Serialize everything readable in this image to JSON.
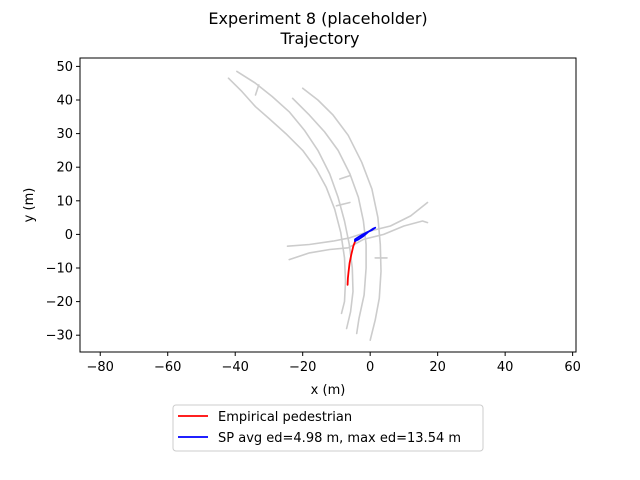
{
  "chart_data": {
    "type": "line",
    "title": "Experiment 8 (placeholder)",
    "subtitle": "Trajectory",
    "xlabel": "x (m)",
    "ylabel": "y (m)",
    "xlim": [
      -86,
      61
    ],
    "ylim": [
      -35,
      52.5
    ],
    "xticks": [
      -80,
      -60,
      -40,
      -20,
      0,
      20,
      40,
      60
    ],
    "yticks": [
      -30,
      -20,
      -10,
      0,
      10,
      20,
      30,
      40,
      50
    ],
    "grid": false,
    "legend_position": "below",
    "background_tracks": {
      "color": "#cccccc",
      "tracks": [
        [
          [
            -42,
            46.5
          ],
          [
            -38,
            42.5
          ],
          [
            -34,
            38
          ],
          [
            -30,
            34.5
          ],
          [
            -25,
            30
          ],
          [
            -20,
            25
          ],
          [
            -16,
            19.5
          ],
          [
            -13,
            14
          ],
          [
            -10.5,
            7.5
          ],
          [
            -8.7,
            0.5
          ],
          [
            -7.6,
            -7
          ],
          [
            -7.3,
            -14
          ],
          [
            -7.6,
            -20
          ],
          [
            -8.5,
            -23.5
          ]
        ],
        [
          [
            -39.5,
            48.5
          ],
          [
            -34,
            45
          ],
          [
            -29,
            41
          ],
          [
            -24,
            36.5
          ],
          [
            -19.5,
            31
          ],
          [
            -15.5,
            25
          ],
          [
            -12,
            18
          ],
          [
            -9.5,
            11
          ],
          [
            -7.6,
            4
          ],
          [
            -6.2,
            -3
          ],
          [
            -5.3,
            -10
          ],
          [
            -5.1,
            -17
          ],
          [
            -5.8,
            -23
          ],
          [
            -7,
            -28
          ]
        ],
        [
          [
            -34,
            41.5
          ],
          [
            -33,
            44.5
          ]
        ],
        [
          [
            -23,
            40.5
          ],
          [
            -18,
            35.5
          ],
          [
            -13.5,
            30.5
          ],
          [
            -9.5,
            25
          ],
          [
            -6,
            18
          ],
          [
            -3.5,
            11
          ],
          [
            -2,
            4
          ],
          [
            -1.2,
            -3
          ],
          [
            -1.2,
            -10
          ],
          [
            -1.8,
            -18
          ],
          [
            -3.3,
            -25
          ],
          [
            -4,
            -29.5
          ]
        ],
        [
          [
            -20,
            43.5
          ],
          [
            -15.5,
            40
          ],
          [
            -11,
            35.5
          ],
          [
            -6.5,
            29.5
          ],
          [
            -2.5,
            21.5
          ],
          [
            0.5,
            13.5
          ],
          [
            2.3,
            5
          ],
          [
            3,
            -3
          ],
          [
            3.2,
            -11
          ],
          [
            2.7,
            -19
          ],
          [
            1.5,
            -25.5
          ],
          [
            0,
            -31.5
          ]
        ],
        [
          [
            -6,
            17.5
          ],
          [
            -9,
            16.5
          ]
        ],
        [
          [
            -6,
            9.5
          ],
          [
            -10,
            8.5
          ]
        ],
        [
          [
            1.5,
            -7
          ],
          [
            5,
            -7
          ]
        ],
        [
          [
            -24.5,
            -3.5
          ],
          [
            -18,
            -3
          ],
          [
            -11,
            -2
          ],
          [
            -6,
            -1
          ],
          [
            0,
            1
          ],
          [
            6,
            2.5
          ],
          [
            12,
            5.5
          ],
          [
            17,
            9.5
          ]
        ],
        [
          [
            -24,
            -7.5
          ],
          [
            -18,
            -5.5
          ],
          [
            -12,
            -4.5
          ],
          [
            -6.5,
            -4
          ],
          [
            -2,
            -1.5
          ],
          [
            4,
            0
          ],
          [
            10,
            2.5
          ],
          [
            15.5,
            4
          ],
          [
            17,
            3.5
          ]
        ]
      ]
    },
    "series": [
      {
        "name": "Empirical pedestrian",
        "color": "#ff0000",
        "points": [
          [
            -4.3,
            -1.6
          ],
          [
            -5.0,
            -3.5
          ],
          [
            -5.6,
            -6.0
          ],
          [
            -6.1,
            -8.5
          ],
          [
            -6.4,
            -11.0
          ],
          [
            -6.6,
            -13.0
          ],
          [
            -6.7,
            -15.0
          ]
        ]
      },
      {
        "name": "SP avg ed=4.98 m, max ed=13.54 m",
        "color": "#0000ff",
        "points": [
          [
            1.5,
            2.0
          ],
          [
            0.5,
            1.3
          ],
          [
            -1.0,
            0.6
          ],
          [
            -2.3,
            -0.1
          ],
          [
            -3.5,
            -0.8
          ],
          [
            -4.5,
            -1.5
          ],
          [
            -4.5,
            -2.0
          ],
          [
            -3.5,
            -1.5
          ],
          [
            -2.0,
            -0.5
          ],
          [
            -0.5,
            0.8
          ],
          [
            1.0,
            1.8
          ]
        ]
      }
    ]
  }
}
